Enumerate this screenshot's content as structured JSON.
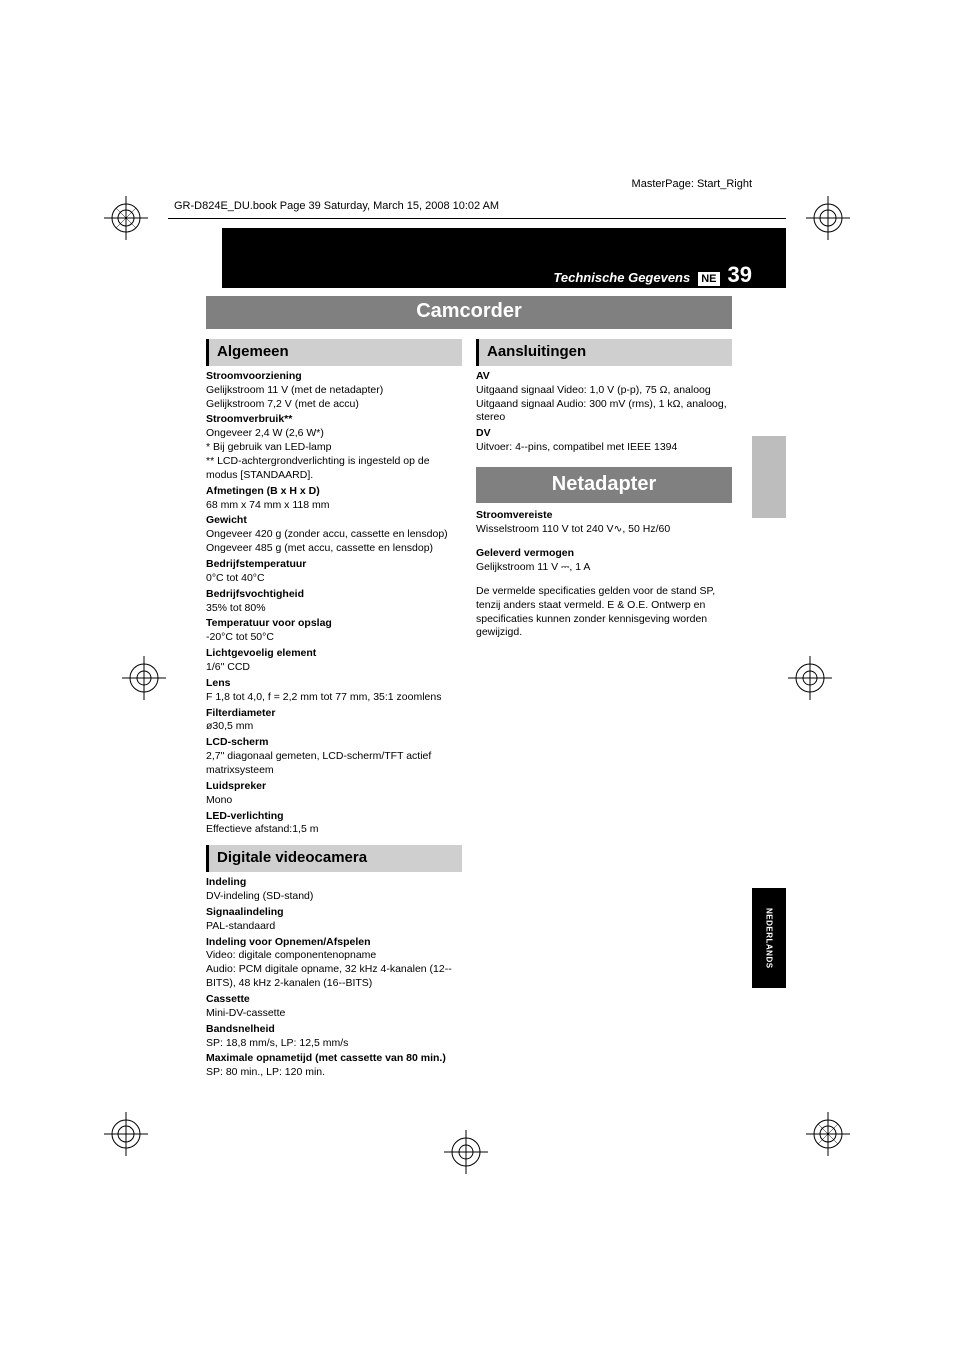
{
  "masterpage_note": "MasterPage: Start_Right",
  "header_note": "GR-D824E_DU.book  Page 39  Saturday, March 15, 2008  10:02 AM",
  "running_title": "Technische Gegevens",
  "lang_code": "NE",
  "page_number": "39",
  "main_section": "Camcorder",
  "secondary_section": "Netadapter",
  "lang_tab": "NEDERLANDS",
  "left": {
    "sub1": "Algemeen",
    "items1": [
      {
        "h": "Stroomvoorziening",
        "t": "Gelijkstroom 11 V (met de netadapter)\nGelijkstroom 7,2 V (met de accu)"
      },
      {
        "h": "Stroomverbruik**",
        "t": "Ongeveer 2,4 W (2,6 W*)\n* Bij gebruik van LED-lamp\n** LCD-achtergrondverlichting is ingesteld op de modus [STANDAARD]."
      },
      {
        "h": "Afmetingen (B x H x D)",
        "t": "68 mm x 74 mm x 118 mm"
      },
      {
        "h": "Gewicht",
        "t": "Ongeveer 420 g (zonder accu, cassette en lensdop)\nOngeveer 485 g (met accu, cassette en lensdop)"
      },
      {
        "h": "Bedrijfstemperatuur",
        "t": "0°C tot 40°C"
      },
      {
        "h": "Bedrijfsvochtigheid",
        "t": "35% tot 80%"
      },
      {
        "h": "Temperatuur voor opslag",
        "t": "-20°C tot 50°C"
      },
      {
        "h": "Lichtgevoelig element",
        "t": "1/6\" CCD"
      },
      {
        "h": "Lens",
        "t": "F 1,8 tot 4,0, f = 2,2 mm tot 77 mm, 35:1 zoomlens"
      },
      {
        "h": "Filterdiameter",
        "t": "ø30,5 mm"
      },
      {
        "h": "LCD-scherm",
        "t": "2,7\" diagonaal gemeten, LCD-scherm/TFT actief matrixsysteem"
      },
      {
        "h": "Luidspreker",
        "t": "Mono"
      },
      {
        "h": "LED-verlichting",
        "t": "Effectieve afstand:1,5 m"
      }
    ],
    "sub2": "Digitale videocamera",
    "items2": [
      {
        "h": "Indeling",
        "t": "DV-indeling (SD-stand)"
      },
      {
        "h": "Signaalindeling",
        "t": "PAL-standaard"
      },
      {
        "h": "Indeling voor Opnemen/Afspelen",
        "t": "Video: digitale componentenopname\nAudio: PCM digitale opname, 32 kHz 4-kanalen (12--BITS), 48 kHz 2-kanalen (16--BITS)"
      },
      {
        "h": "Cassette",
        "t": "Mini-DV-cassette"
      },
      {
        "h": "Bandsnelheid",
        "t": "SP: 18,8 mm/s, LP: 12,5 mm/s"
      },
      {
        "h": "Maximale opnametijd (met cassette van 80 min.)",
        "t": "SP: 80 min., LP: 120 min."
      }
    ]
  },
  "right": {
    "sub1": "Aansluitingen",
    "items1": [
      {
        "h": "AV",
        "t": "Uitgaand signaal Video: 1,0 V (p-p), 75 Ω, analoog\nUitgaand signaal Audio: 300 mV (rms), 1 kΩ, analoog, stereo"
      },
      {
        "h": "DV",
        "t": "Uitvoer: 4--pins, compatibel met IEEE 1394"
      }
    ],
    "items2": [
      {
        "h": "Stroomvereiste",
        "t": "Wisselstroom 110 V tot 240 V∿, 50 Hz/60"
      },
      {
        "h": "Geleverd vermogen",
        "t": "Gelijkstroom 11 V ⎓, 1 A"
      }
    ],
    "note": "De vermelde specificaties gelden voor de stand SP, tenzij anders staat vermeld. E & O.E. Ontwerp en specificaties kunnen zonder kennisgeving worden gewijzigd."
  },
  "colors": {
    "bar_main": "#808080",
    "bar_sub": "#cfcfcf",
    "black": "#000000",
    "side_grey": "#bdbdbd"
  }
}
